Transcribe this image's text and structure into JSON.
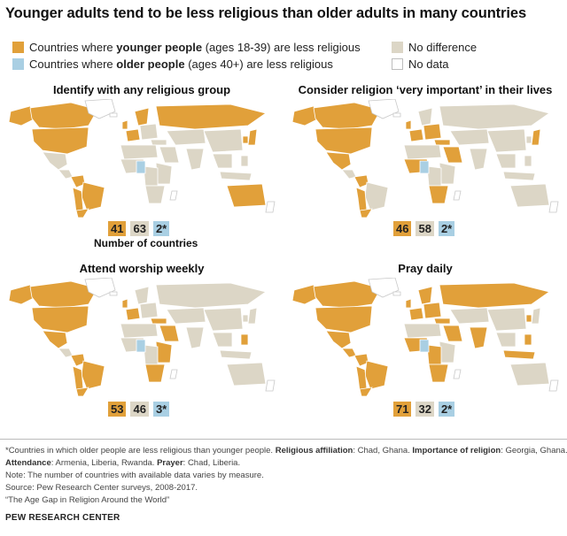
{
  "title": "Younger adults tend to be less religious than older adults in many countries",
  "legend": {
    "younger_prefix": "Countries where ",
    "younger_bold": "younger people",
    "younger_suffix": " (ages 18-39) are less religious",
    "older_prefix": "Countries where ",
    "older_bold": "older people",
    "older_suffix": " (ages 40+) are less religious",
    "no_difference": "No difference",
    "no_data": "No data"
  },
  "colors": {
    "younger": "#e1a03a",
    "no_difference": "#dcd6c6",
    "older": "#a9cfe3",
    "no_data": "#ffffff"
  },
  "panels": [
    {
      "title": "Identify with any religious group",
      "younger": "41",
      "no_difference": "63",
      "older": "2*"
    },
    {
      "title": "Consider religion ‘very important’ in their lives",
      "younger": "46",
      "no_difference": "58",
      "older": "2*"
    },
    {
      "title": "Attend worship weekly",
      "younger": "53",
      "no_difference": "46",
      "older": "3*"
    },
    {
      "title": "Pray daily",
      "younger": "71",
      "no_difference": "32",
      "older": "2*"
    }
  ],
  "counts_label": "Number of countries",
  "notes": {
    "line1_a": "*Countries in which older people are less religious than younger people. ",
    "line1_b": "Religious affiliation",
    "line1_c": ": Chad, Ghana. ",
    "line1_d": "Importance of religion",
    "line1_e": ": Georgia, Ghana.",
    "line2_a": "Attendance",
    "line2_b": ": Armenia, Liberia, Rwanda. ",
    "line2_c": "Prayer",
    "line2_d": ": Chad, Liberia.",
    "line3": "Note: The number of countries with available data varies by measure.",
    "line4": "Source: Pew Research Center surveys, 2008-2017.",
    "line5": "“The Age Gap in Religion Around the World”"
  },
  "footer": "PEW RESEARCH CENTER"
}
